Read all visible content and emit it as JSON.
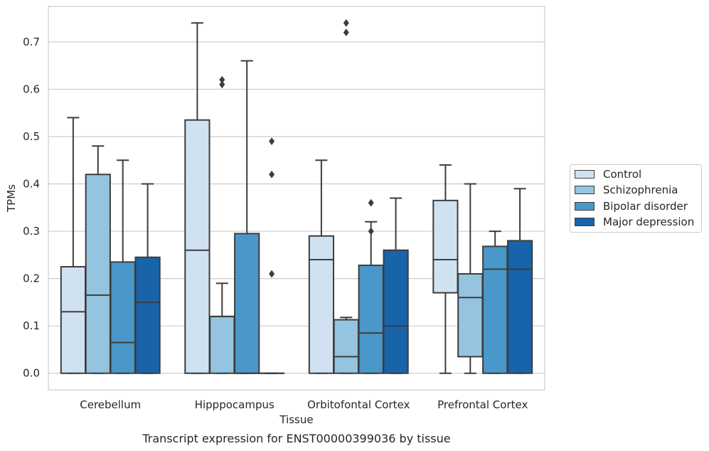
{
  "caption": "Transcript expression for ENST00000399036 by tissue",
  "chart_data": {
    "type": "box",
    "title": "",
    "xlabel": "Tissue",
    "ylabel": "TPMs",
    "ylim": [
      -0.035,
      0.775
    ],
    "yticks": [
      0.0,
      0.1,
      0.2,
      0.3,
      0.4,
      0.5,
      0.6,
      0.7
    ],
    "ytick_labels": [
      "0.0",
      "0.1",
      "0.2",
      "0.3",
      "0.4",
      "0.5",
      "0.6",
      "0.7"
    ],
    "grid": true,
    "legend_position": "right",
    "categories": [
      "Cerebellum",
      "Hipppocampus",
      "Orbitofontal Cortex",
      "Prefrontal Cortex"
    ],
    "series": [
      {
        "name": "Control",
        "color": "#d0e1f2",
        "boxes": [
          {
            "whislo": 0.0,
            "q1": 0.0,
            "med": 0.13,
            "q3": 0.225,
            "whishi": 0.54,
            "fliers": []
          },
          {
            "whislo": 0.0,
            "q1": 0.0,
            "med": 0.26,
            "q3": 0.535,
            "whishi": 0.74,
            "fliers": []
          },
          {
            "whislo": 0.0,
            "q1": 0.0,
            "med": 0.24,
            "q3": 0.29,
            "whishi": 0.45,
            "fliers": []
          },
          {
            "whislo": 0.0,
            "q1": 0.17,
            "med": 0.24,
            "q3": 0.365,
            "whishi": 0.44,
            "fliers": []
          }
        ]
      },
      {
        "name": "Schizophrenia",
        "color": "#94c4df",
        "boxes": [
          {
            "whislo": 0.0,
            "q1": 0.0,
            "med": 0.165,
            "q3": 0.42,
            "whishi": 0.48,
            "fliers": []
          },
          {
            "whislo": 0.0,
            "q1": 0.0,
            "med": 0.12,
            "q3": 0.12,
            "whishi": 0.19,
            "fliers": [
              0.61,
              0.62
            ]
          },
          {
            "whislo": 0.0,
            "q1": 0.0,
            "med": 0.035,
            "q3": 0.113,
            "whishi": 0.118,
            "fliers": [
              0.74,
              0.72
            ]
          },
          {
            "whislo": 0.0,
            "q1": 0.035,
            "med": 0.16,
            "q3": 0.21,
            "whishi": 0.4,
            "fliers": []
          }
        ]
      },
      {
        "name": "Bipolar disorder",
        "color": "#4a98c9",
        "boxes": [
          {
            "whislo": 0.0,
            "q1": 0.0,
            "med": 0.065,
            "q3": 0.235,
            "whishi": 0.45,
            "fliers": []
          },
          {
            "whislo": 0.0,
            "q1": 0.0,
            "med": 0.0,
            "q3": 0.295,
            "whishi": 0.66,
            "fliers": []
          },
          {
            "whislo": 0.0,
            "q1": 0.0,
            "med": 0.085,
            "q3": 0.228,
            "whishi": 0.32,
            "fliers": [
              0.3,
              0.36
            ]
          },
          {
            "whislo": 0.0,
            "q1": 0.0,
            "med": 0.22,
            "q3": 0.268,
            "whishi": 0.3,
            "fliers": []
          }
        ]
      },
      {
        "name": "Major depression",
        "color": "#1764ab",
        "boxes": [
          {
            "whislo": 0.0,
            "q1": 0.0,
            "med": 0.15,
            "q3": 0.245,
            "whishi": 0.4,
            "fliers": []
          },
          {
            "whislo": 0.0,
            "q1": 0.0,
            "med": 0.0,
            "q3": 0.0,
            "whishi": 0.0,
            "fliers": [
              0.21,
              0.42,
              0.49
            ]
          },
          {
            "whislo": 0.0,
            "q1": 0.0,
            "med": 0.1,
            "q3": 0.26,
            "whishi": 0.37,
            "fliers": []
          },
          {
            "whislo": 0.0,
            "q1": 0.0,
            "med": 0.22,
            "q3": 0.28,
            "whishi": 0.39,
            "fliers": []
          }
        ]
      }
    ]
  }
}
